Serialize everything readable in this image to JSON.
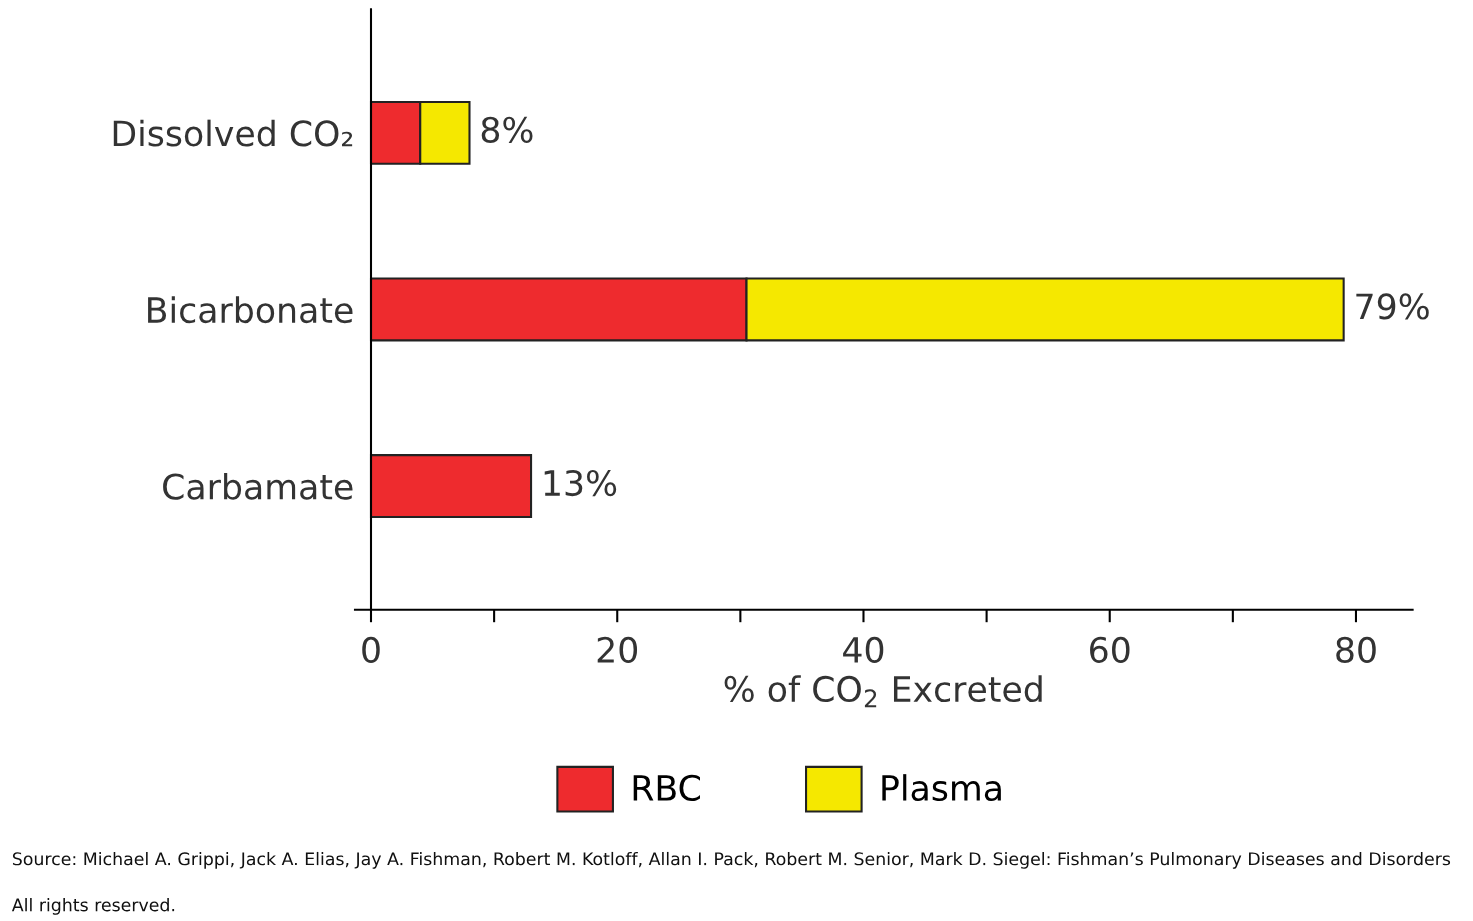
{
  "chart_data": {
    "type": "bar",
    "orientation": "horizontal",
    "stacked": true,
    "categories": [
      "Dissolved CO₂",
      "Bicarbonate",
      "Carbamate"
    ],
    "series": [
      {
        "name": "RBC",
        "color": "#ee2b2e",
        "values": [
          4,
          30.5,
          13
        ]
      },
      {
        "name": "Plasma",
        "color": "#f5e800",
        "values": [
          4,
          48.5,
          null
        ]
      }
    ],
    "totals": [
      "8%",
      "79%",
      "13%"
    ],
    "xlabel": "% of CO$_{2}$ Excreted",
    "xlim": [
      -1.3,
      84.6
    ],
    "xticks": [
      0,
      {
        "value": 10,
        "label": null
      },
      20,
      {
        "value": 30,
        "label": null
      },
      40,
      {
        "value": 50,
        "label": null
      },
      60,
      {
        "value": 70,
        "label": null
      },
      80
    ],
    "grid": false,
    "legend": "bottom",
    "annotations": [
      "Source: Michael A. Grippi, Jack A. Elias, Jay A. Fishman, Robert M. Kotloff, Allan I. Pack, Robert M. Senior, Mark D. Siegel: Fishman’s Pulmonary Diseases and Disorders",
      "All rights reserved."
    ]
  }
}
